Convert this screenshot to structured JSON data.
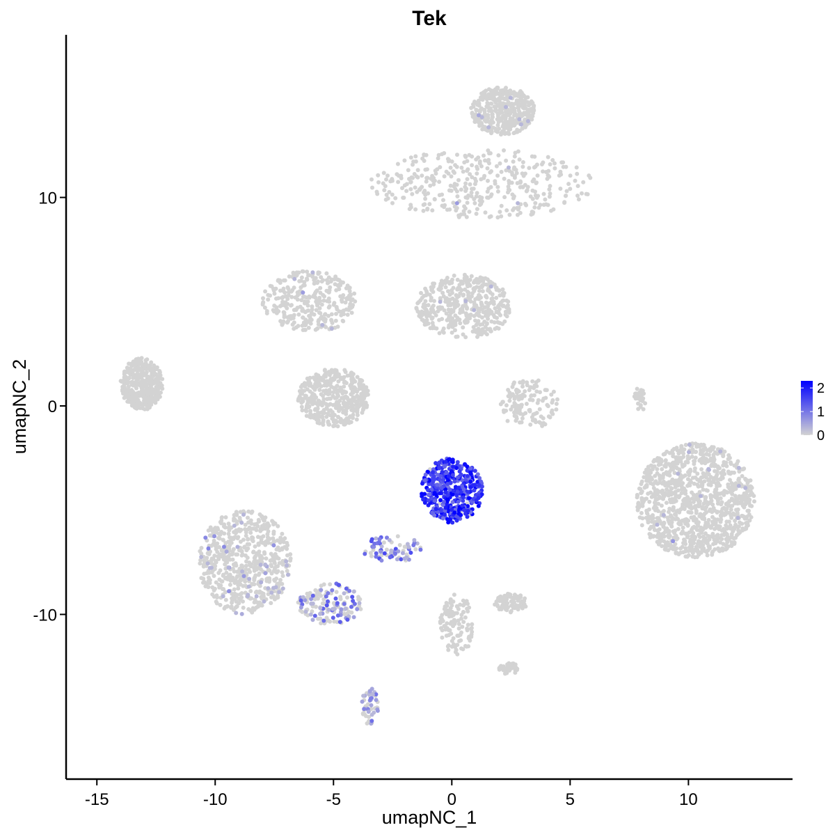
{
  "chart_data": {
    "type": "scatter",
    "title": "Tek",
    "xlabel": "umapNC_1",
    "ylabel": "umapNC_2",
    "xlim": [
      -16.3,
      14.4
    ],
    "ylim": [
      -17.9,
      17.8
    ],
    "xticks": [
      -15,
      -10,
      -5,
      0,
      5,
      10
    ],
    "yticks": [
      -10,
      0,
      10
    ],
    "grid": false,
    "legend": {
      "position": "right",
      "type": "colorbar",
      "range": [
        0,
        2.3
      ],
      "ticks": [
        0,
        1,
        2
      ]
    },
    "colors": {
      "low": "#d3d3d3",
      "high": "#0000ff"
    },
    "clusters": [
      {
        "x": [
          -14.0,
          -12.2
        ],
        "y": [
          -0.2,
          2.3
        ],
        "n": 380,
        "expr": 0,
        "hi_frac": 0
      },
      {
        "x": [
          -8.0,
          -4.0
        ],
        "y": [
          3.5,
          6.5
        ],
        "n": 320,
        "expr": 0,
        "hi_frac": 0.01
      },
      {
        "x": [
          -6.5,
          -3.5
        ],
        "y": [
          -1.0,
          1.8
        ],
        "n": 420,
        "expr": 0,
        "hi_frac": 0
      },
      {
        "x": [
          -1.5,
          2.5
        ],
        "y": [
          3.2,
          6.3
        ],
        "n": 420,
        "expr": 0,
        "hi_frac": 0.01
      },
      {
        "x": [
          0.8,
          3.5
        ],
        "y": [
          13.0,
          15.3
        ],
        "n": 420,
        "expr": 0,
        "hi_frac": 0.01
      },
      {
        "x": [
          -3.5,
          6.0
        ],
        "y": [
          9.0,
          12.3
        ],
        "n": 380,
        "expr": 0,
        "hi_frac": 0.01
      },
      {
        "x": [
          2.0,
          4.5
        ],
        "y": [
          -1.1,
          1.3
        ],
        "n": 130,
        "expr": 0,
        "hi_frac": 0
      },
      {
        "x": [
          7.8,
          12.8
        ],
        "y": [
          -7.3,
          -1.8
        ],
        "n": 1100,
        "expr": 0,
        "hi_frac": 0.01
      },
      {
        "x": [
          -10.7,
          -6.8
        ],
        "y": [
          -10.0,
          -5.0
        ],
        "n": 620,
        "expr": 0.2,
        "hi_frac": 0.06
      },
      {
        "x": [
          -6.5,
          -3.8
        ],
        "y": [
          -10.5,
          -8.5
        ],
        "n": 150,
        "expr": 0.7,
        "hi_frac": 0.4
      },
      {
        "x": [
          -1.3,
          1.3
        ],
        "y": [
          -5.6,
          -2.5
        ],
        "n": 420,
        "expr": 1.7,
        "hi_frac": 0.95
      },
      {
        "x": [
          -3.8,
          -1.2
        ],
        "y": [
          -7.5,
          -6.2
        ],
        "n": 75,
        "expr": 0.8,
        "hi_frac": 0.6
      },
      {
        "x": [
          1.8,
          3.2
        ],
        "y": [
          -9.9,
          -9.0
        ],
        "n": 90,
        "expr": 0,
        "hi_frac": 0
      },
      {
        "x": [
          -0.5,
          0.9
        ],
        "y": [
          -12.0,
          -9.0
        ],
        "n": 110,
        "expr": 0,
        "hi_frac": 0
      },
      {
        "x": [
          -3.8,
          -3.1
        ],
        "y": [
          -15.3,
          -13.5
        ],
        "n": 55,
        "expr": 0.4,
        "hi_frac": 0.3
      },
      {
        "x": [
          2.0,
          2.8
        ],
        "y": [
          -12.9,
          -12.3
        ],
        "n": 40,
        "expr": 0,
        "hi_frac": 0
      },
      {
        "x": [
          7.7,
          8.2
        ],
        "y": [
          -0.3,
          0.9
        ],
        "n": 30,
        "expr": 0,
        "hi_frac": 0
      }
    ]
  }
}
